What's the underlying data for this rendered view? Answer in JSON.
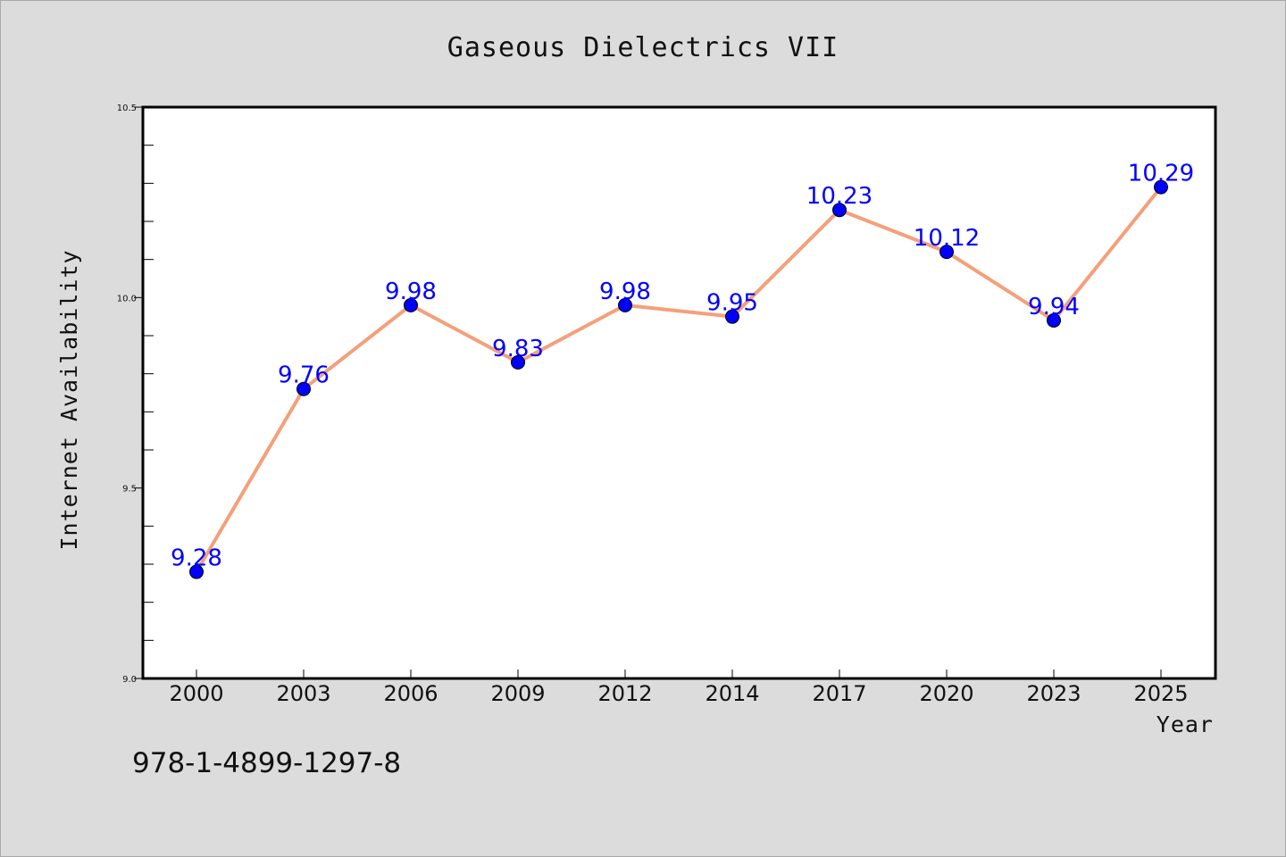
{
  "chart_data": {
    "type": "line",
    "title": "Gaseous Dielectrics VII",
    "xlabel": "Year",
    "ylabel": "Internet Availability",
    "categories": [
      "2000",
      "2003",
      "2006",
      "2009",
      "2012",
      "2014",
      "2017",
      "2020",
      "2023",
      "2025"
    ],
    "series": [
      {
        "values": [
          9.28,
          9.76,
          9.98,
          9.83,
          9.98,
          9.95,
          10.23,
          10.12,
          9.94,
          10.29
        ]
      }
    ],
    "data_labels": [
      "9.28",
      "9.76",
      "9.98",
      "9.83",
      "9.98",
      "9.95",
      "10.23",
      "10.12",
      "9.94",
      "10.29"
    ],
    "ylim": [
      9.0,
      10.5
    ],
    "yticks": [
      "9.0",
      "9.5",
      "10.0",
      "10.5"
    ],
    "grid": false,
    "legend": "none",
    "line_color": "#f4a07a",
    "marker_color": "#0000ff",
    "label_color": "#0000ff"
  },
  "isbn": "978-1-4899-1297-8",
  "colors": {
    "background": "#dcdcdc",
    "plot_area": "#ffffff"
  }
}
